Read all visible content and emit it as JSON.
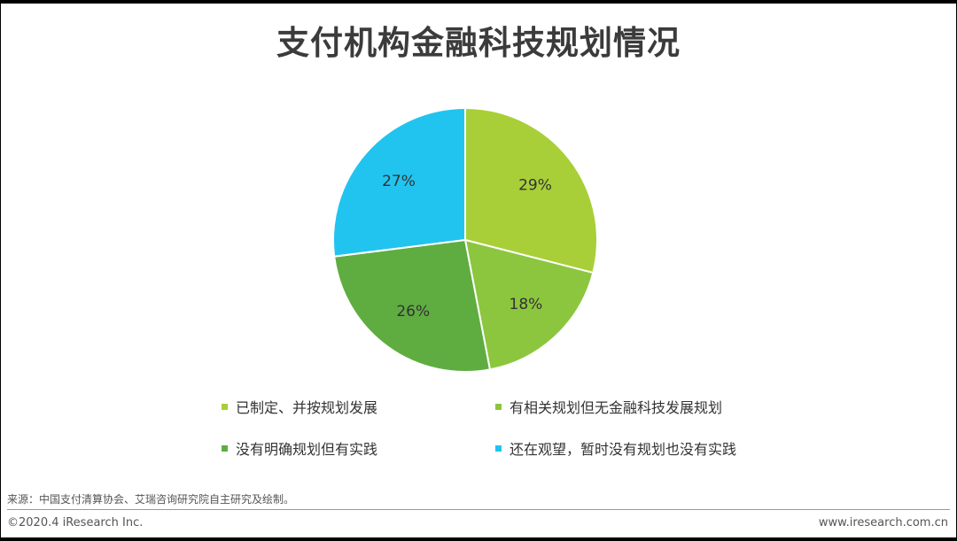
{
  "title": "支付机构金融科技规划情况",
  "chart_data": {
    "type": "pie",
    "title": "支付机构金融科技规划情况",
    "categories": [
      "已制定、并按规划发展",
      "有相关规划但无金融科技发展规划",
      "没有明确规划但有实践",
      "还在观望，暂时没有规划也没有实践"
    ],
    "values": [
      29,
      18,
      26,
      27
    ],
    "labels": [
      "29%",
      "18%",
      "26%",
      "27%"
    ],
    "colors": [
      "#a8cf38",
      "#8cc63f",
      "#5fad41",
      "#21c4ef"
    ],
    "start_angle_deg": 0,
    "direction": "clockwise",
    "legend_position": "bottom"
  },
  "footer": {
    "source": "来源：中国支付清算协会、艾瑞咨询研究院自主研究及绘制。",
    "copyright": "©2020.4 iResearch Inc.",
    "website": "www.iresearch.com.cn"
  }
}
